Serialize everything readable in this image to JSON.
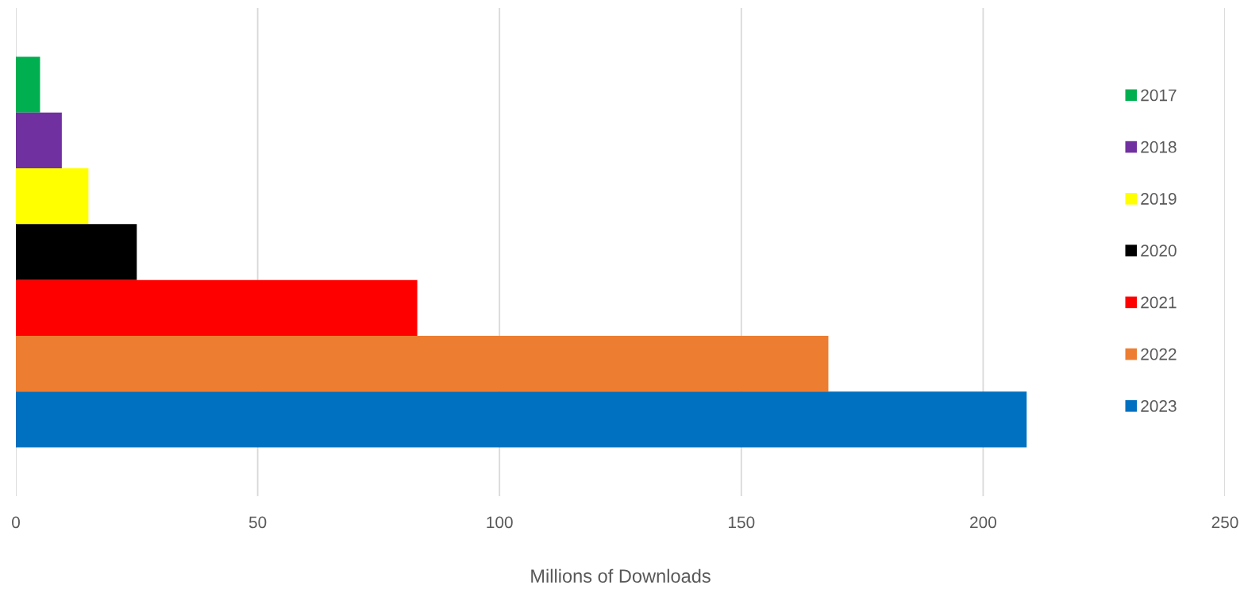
{
  "chart_data": {
    "type": "bar",
    "orientation": "horizontal",
    "xlabel": "Millions of Downloads",
    "categories": [
      null
    ],
    "series": [
      {
        "name": "2017",
        "color": "#00b050",
        "values": [
          5
        ]
      },
      {
        "name": "2018",
        "color": "#7030a0",
        "values": [
          9.5
        ]
      },
      {
        "name": "2019",
        "color": "#ffff00",
        "values": [
          15
        ]
      },
      {
        "name": "2020",
        "color": "#000000",
        "values": [
          25
        ]
      },
      {
        "name": "2021",
        "color": "#ff0000",
        "values": [
          83
        ]
      },
      {
        "name": "2022",
        "color": "#ed7d31",
        "values": [
          168
        ]
      },
      {
        "name": "2023",
        "color": "#0070c0",
        "values": [
          209
        ]
      }
    ],
    "xlim": [
      0,
      250
    ],
    "xticks": [
      0,
      50,
      100,
      150,
      200,
      250
    ],
    "grid": "x",
    "legend": "right"
  }
}
